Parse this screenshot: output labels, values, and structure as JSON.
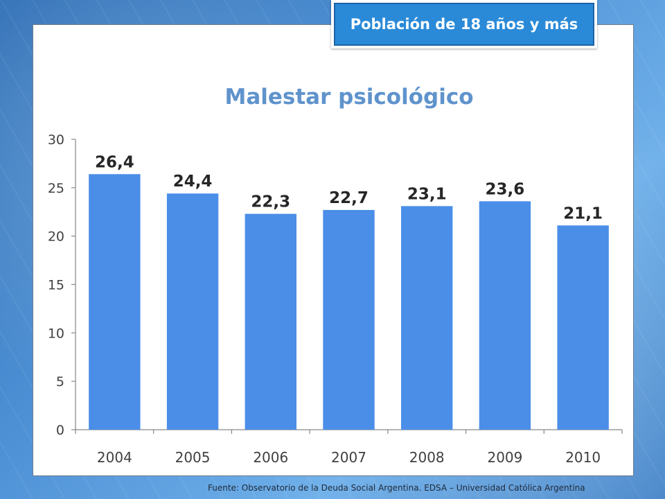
{
  "badge": {
    "label": "Población de 18 años y más"
  },
  "source": {
    "text": "Fuente:  Observatorio de  la Deuda Social Argentina. EDSA  – Universidad Católica Argentina"
  },
  "colors": {
    "bar": "#4a8ee8",
    "title": "#5f93cc",
    "axis": "#868686",
    "grid": "#868686"
  },
  "chart_data": {
    "type": "bar",
    "title": "Malestar psicológico",
    "xlabel": "",
    "ylabel": "",
    "categories": [
      "2004",
      "2005",
      "2006",
      "2007",
      "2008",
      "2009",
      "2010"
    ],
    "values": [
      26.4,
      24.4,
      22.3,
      22.7,
      23.1,
      23.6,
      21.1
    ],
    "data_labels": [
      "26,4",
      "24,4",
      "22,3",
      "22,7",
      "23,1",
      "23,6",
      "21,1"
    ],
    "ylim": [
      0,
      30
    ],
    "yticks": [
      0,
      5,
      10,
      15,
      20,
      25,
      30
    ],
    "grid": false,
    "legend": "none"
  }
}
